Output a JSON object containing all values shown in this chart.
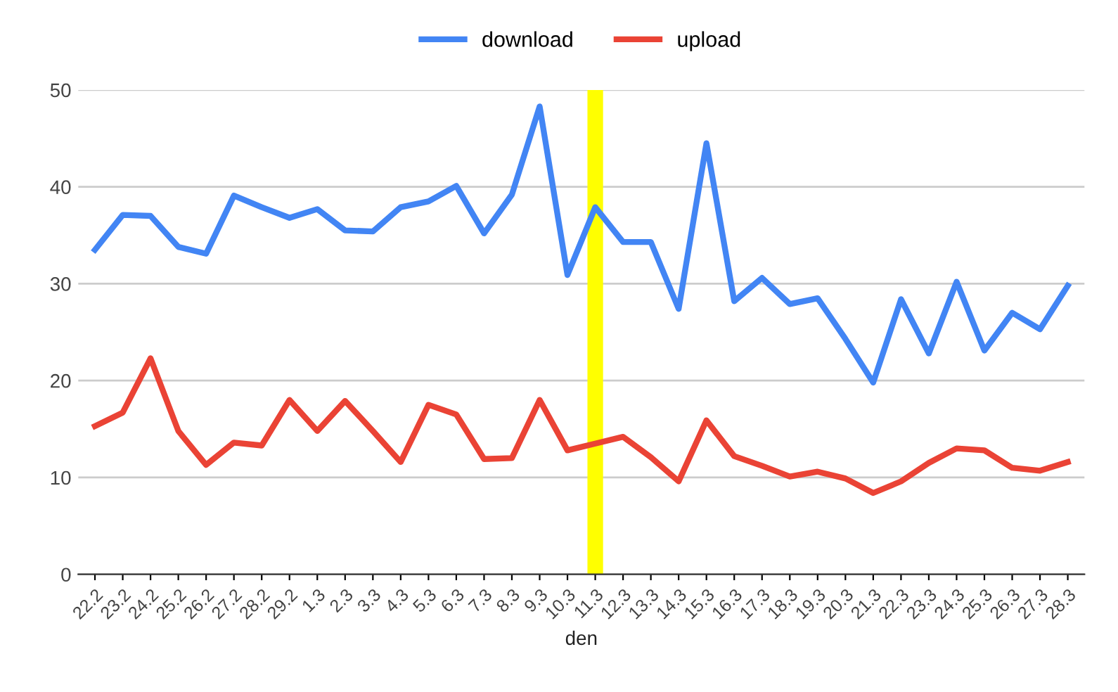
{
  "chart_data": {
    "type": "line",
    "xlabel": "den",
    "categories": [
      "22.2",
      "23.2",
      "24.2",
      "25.2",
      "26.2",
      "27.2",
      "28.2",
      "29.2",
      "1.3",
      "2.3",
      "3.3",
      "4.3",
      "5.3",
      "6.3",
      "7.3",
      "8.3",
      "9.3",
      "10.3",
      "11.3",
      "12.3",
      "13.3",
      "14.3",
      "15.3",
      "16.3",
      "17.3",
      "18.3",
      "19.3",
      "20.3",
      "21.3",
      "22.3",
      "23.3",
      "24.3",
      "25.3",
      "26.3",
      "27.3",
      "28.3"
    ],
    "series": [
      {
        "name": "download",
        "color": "#4285f4",
        "values": [
          33.5,
          37.1,
          37.0,
          33.8,
          33.1,
          39.1,
          37.9,
          36.8,
          37.7,
          35.5,
          35.4,
          37.9,
          38.5,
          40.1,
          35.2,
          39.2,
          48.3,
          30.9,
          37.9,
          34.3,
          34.3,
          27.4,
          44.5,
          28.2,
          30.6,
          27.9,
          28.5,
          24.3,
          19.8,
          28.4,
          22.8,
          30.2,
          23.1,
          27.0,
          25.3,
          29.8
        ]
      },
      {
        "name": "upload",
        "color": "#ea4335",
        "values": [
          15.3,
          16.7,
          22.3,
          14.8,
          11.3,
          13.6,
          13.3,
          18.0,
          14.8,
          17.9,
          14.8,
          11.6,
          17.5,
          16.5,
          11.9,
          12.0,
          18.0,
          12.8,
          13.5,
          14.2,
          12.1,
          9.6,
          15.9,
          12.2,
          11.2,
          10.1,
          10.6,
          9.9,
          8.4,
          9.6,
          11.5,
          13.0,
          12.8,
          11.0,
          10.7,
          11.6
        ]
      }
    ],
    "ylim": [
      0,
      50
    ],
    "yticks": [
      0,
      10,
      20,
      30,
      40,
      50
    ],
    "ref_lines": [
      {
        "axis": "x",
        "value": "11.3",
        "label": null,
        "color": "#ffff00"
      }
    ],
    "grid": "y",
    "legend": "top",
    "marker": "none",
    "line_style": "solid"
  }
}
